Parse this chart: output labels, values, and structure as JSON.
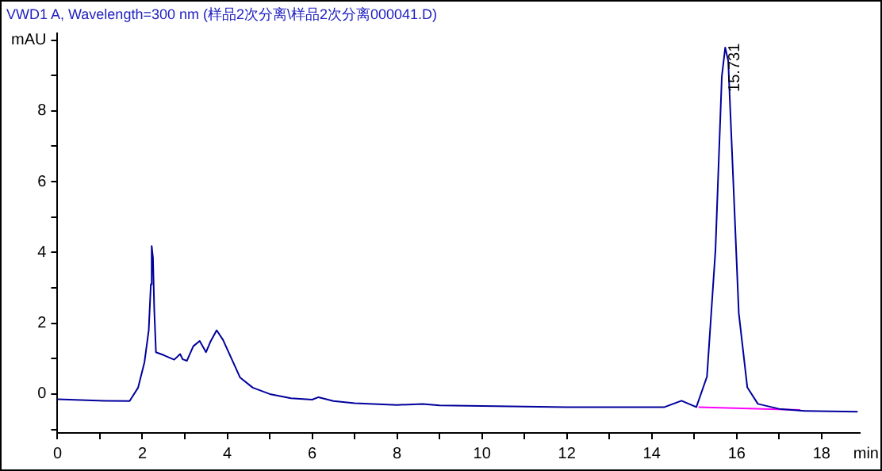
{
  "chart_data": {
    "type": "line",
    "title": "VWD1 A, Wavelength=300 nm (样品2次分离\\样品2次分离000041.D)",
    "xlabel": "min",
    "xlim": [
      0,
      18.9
    ],
    "xticks": [
      0,
      {
        "value": 1,
        "label": null
      },
      2,
      {
        "value": 3,
        "label": null
      },
      4,
      {
        "value": 5,
        "label": null
      },
      6,
      {
        "value": 7,
        "label": null
      },
      8,
      {
        "value": 9,
        "label": null
      },
      10,
      {
        "value": 11,
        "label": null
      },
      12,
      {
        "value": 13,
        "label": null
      },
      14,
      {
        "value": 15,
        "label": null
      },
      16,
      {
        "value": 17,
        "label": null
      },
      18
    ],
    "ylim": [
      -1.1,
      10.2
    ],
    "yticks": [
      {
        "value": -1,
        "label": null
      },
      0,
      {
        "value": 1,
        "label": null
      },
      2,
      {
        "value": 3,
        "label": null
      },
      4,
      {
        "value": 5,
        "label": null
      },
      6,
      {
        "value": 7,
        "label": null
      },
      8,
      {
        "value": 9,
        "label": null
      },
      {
        "value": 10,
        "label": "mAU"
      }
    ],
    "grid": false,
    "legend": false,
    "marker": "none",
    "line_style": "solid",
    "series": [
      {
        "color": "#00009c",
        "x": [
          0,
          1.1,
          1.7,
          1.9,
          2.05,
          2.15,
          2.2,
          2.22,
          2.25,
          2.28,
          2.32,
          2.5,
          2.75,
          2.89,
          2.95,
          3.05,
          3.2,
          3.35,
          3.5,
          3.6,
          3.75,
          3.9,
          4.05,
          4.3,
          4.6,
          5,
          5.5,
          6,
          6.15,
          6.5,
          7,
          8,
          8.6,
          9,
          12,
          14.3,
          14.7,
          15.05,
          15.3,
          15.5,
          15.65,
          15.73,
          15.8,
          15.92,
          16.05,
          16.25,
          16.5,
          17,
          17.6,
          18.85
        ],
        "values": [
          -0.15,
          -0.19,
          -0.2,
          0.18,
          0.9,
          1.8,
          3.1,
          4.18,
          3.85,
          2.4,
          1.18,
          1.1,
          0.97,
          1.13,
          0.98,
          0.94,
          1.35,
          1.5,
          1.18,
          1.47,
          1.8,
          1.53,
          1.13,
          0.47,
          0.18,
          0,
          -0.12,
          -0.16,
          -0.09,
          -0.2,
          -0.26,
          -0.31,
          -0.28,
          -0.32,
          -0.37,
          -0.37,
          -0.19,
          -0.37,
          0.49,
          4.06,
          8.97,
          9.79,
          9.42,
          6.0,
          2.28,
          0.19,
          -0.28,
          -0.42,
          -0.48,
          -0.5
        ]
      },
      {
        "color": "#ff00ff",
        "x": [
          15.1,
          17.5
        ],
        "values": [
          -0.37,
          -0.45
        ]
      }
    ],
    "annotations": [
      {
        "text": "15.731",
        "x": 15.731,
        "y": 9.79
      }
    ]
  }
}
